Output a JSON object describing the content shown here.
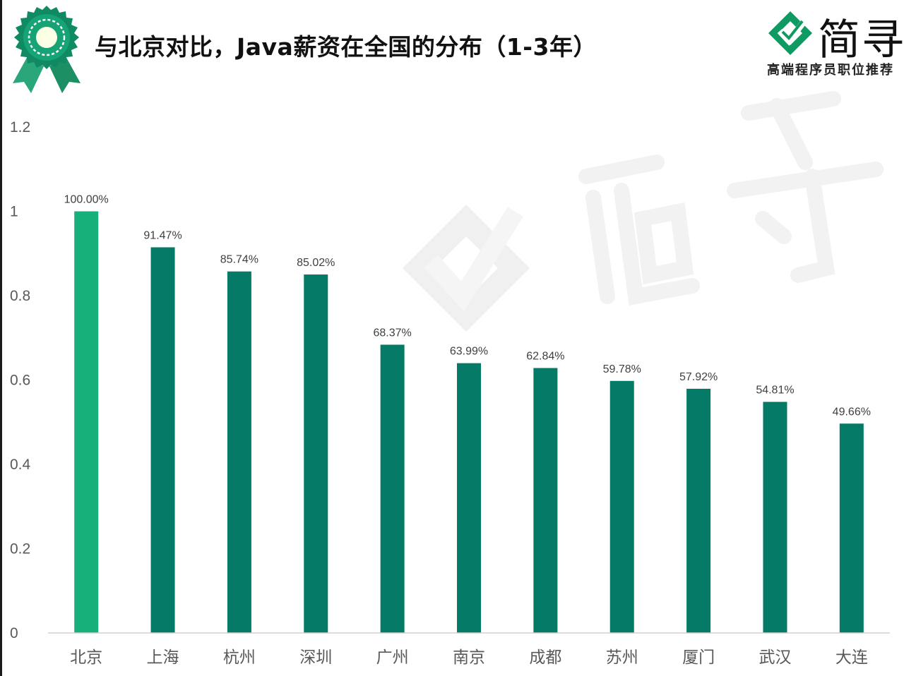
{
  "header": {
    "title": "与北京对比，Java薪资在全国的分布（1-3年）"
  },
  "logo": {
    "name": "简寻",
    "slogan": "高端程序员职位推荐"
  },
  "colors": {
    "highlight_bar": "#17b07b",
    "bar": "#057a66",
    "axis": "#d0d0d0",
    "watermark": "#f2f2f2"
  },
  "icons": {
    "badge": "award-ribbon-icon",
    "logo": "checkmark-logo-icon"
  },
  "chart_data": {
    "type": "bar",
    "title": "与北京对比，Java薪资在全国的分布（1-3年）",
    "xlabel": "",
    "ylabel": "",
    "categories": [
      "北京",
      "上海",
      "杭州",
      "深圳",
      "广州",
      "南京",
      "成都",
      "苏州",
      "厦门",
      "武汉",
      "大连"
    ],
    "values": [
      1.0,
      0.9147,
      0.8574,
      0.8502,
      0.6837,
      0.6399,
      0.6284,
      0.5978,
      0.5792,
      0.5481,
      0.4966
    ],
    "data_labels": [
      "100.00%",
      "91.47%",
      "85.74%",
      "85.02%",
      "68.37%",
      "63.99%",
      "62.84%",
      "59.78%",
      "57.92%",
      "54.81%",
      "49.66%"
    ],
    "highlight_index": 0,
    "ylim": [
      0,
      1.2
    ],
    "yticks": [
      0,
      0.2,
      0.4,
      0.6,
      0.8,
      1,
      1.2
    ],
    "ytick_labels": [
      "0",
      "0.2",
      "0.4",
      "0.6",
      "0.8",
      "1",
      "1.2"
    ],
    "grid": false,
    "legend": "none"
  }
}
